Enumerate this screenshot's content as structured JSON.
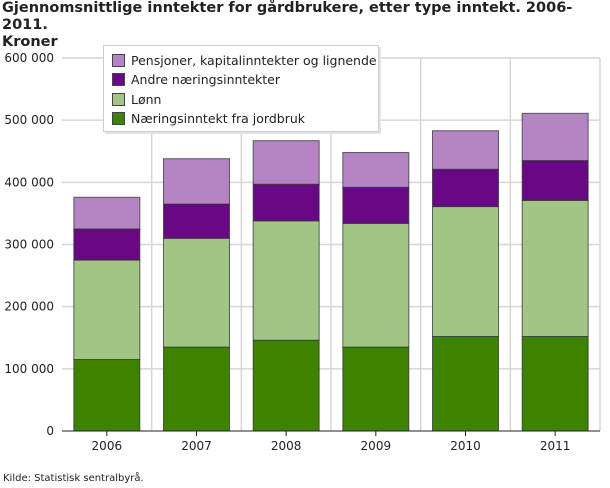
{
  "chart_data": {
    "type": "bar",
    "stacked": true,
    "title": "Gjennomsnittlige inntekter for gårdbrukere, etter type inntekt. 2006-2011. Kroner",
    "title_lines": [
      "Gjennomsnittlige inntekter for gårdbrukere, etter type inntekt. 2006-2011.",
      "Kroner"
    ],
    "xlabel": "",
    "ylabel": "",
    "categories": [
      "2006",
      "2007",
      "2008",
      "2009",
      "2010",
      "2011"
    ],
    "ylim": [
      0,
      600000
    ],
    "yticks": [
      0,
      100000,
      200000,
      300000,
      400000,
      500000,
      600000
    ],
    "ytick_labels": [
      "0",
      "100 000",
      "200 000",
      "300 000",
      "400 000",
      "500 000",
      "600 000"
    ],
    "grid": true,
    "legend_placement": "top-left",
    "series": [
      {
        "name": "Næringsinntekt fra jordbruk",
        "color": "#3d8200",
        "values": [
          115000,
          135000,
          146000,
          135000,
          152000,
          152000
        ]
      },
      {
        "name": "Lønn",
        "color": "#a1c585",
        "values": [
          160000,
          175000,
          192000,
          199000,
          209000,
          219000
        ]
      },
      {
        "name": "Andre næringsinntekter",
        "color": "#680884",
        "values": [
          50000,
          55000,
          59000,
          58000,
          60000,
          64000
        ]
      },
      {
        "name": "Pensjoner, kapitalinntekter og lignende",
        "color": "#b584c2",
        "values": [
          51000,
          73000,
          70000,
          56000,
          62000,
          76000
        ]
      }
    ],
    "legend_order": [
      3,
      2,
      1,
      0
    ]
  },
  "source": "Kilde: Statistisk sentralbyrå."
}
